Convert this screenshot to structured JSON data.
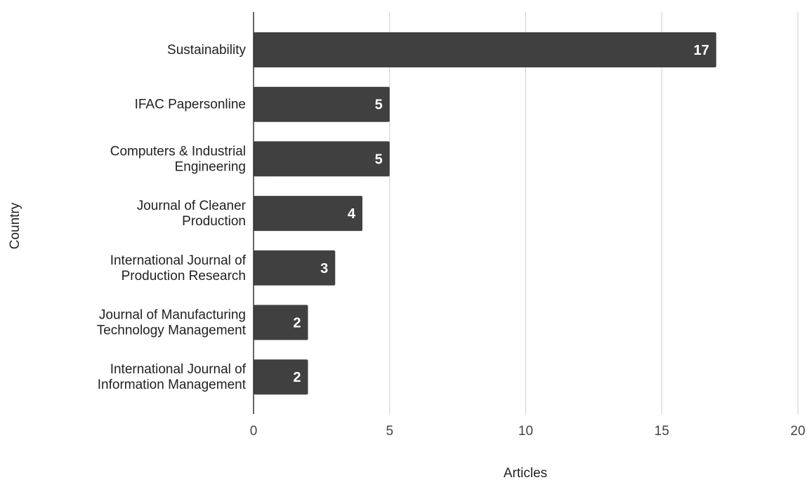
{
  "chart_data": {
    "type": "bar",
    "orientation": "horizontal",
    "categories": [
      [
        "Sustainability"
      ],
      [
        "IFAC Papersonline"
      ],
      [
        "Computers & Industrial",
        "Engineering"
      ],
      [
        "Journal of Cleaner",
        "Production"
      ],
      [
        "International Journal of",
        "Production Research"
      ],
      [
        "Journal of Manufacturing",
        "Technology Management"
      ],
      [
        "International Journal of",
        "Information Management"
      ]
    ],
    "values": [
      17,
      5,
      5,
      4,
      3,
      2,
      2
    ],
    "xlabel": "Articles",
    "ylabel": "Country",
    "xlim": [
      0,
      20
    ],
    "xticks": [
      0,
      5,
      10,
      15,
      20
    ],
    "grid": true,
    "data_labels": true,
    "bar_color": "#404040",
    "label_color": "#ffffff"
  }
}
